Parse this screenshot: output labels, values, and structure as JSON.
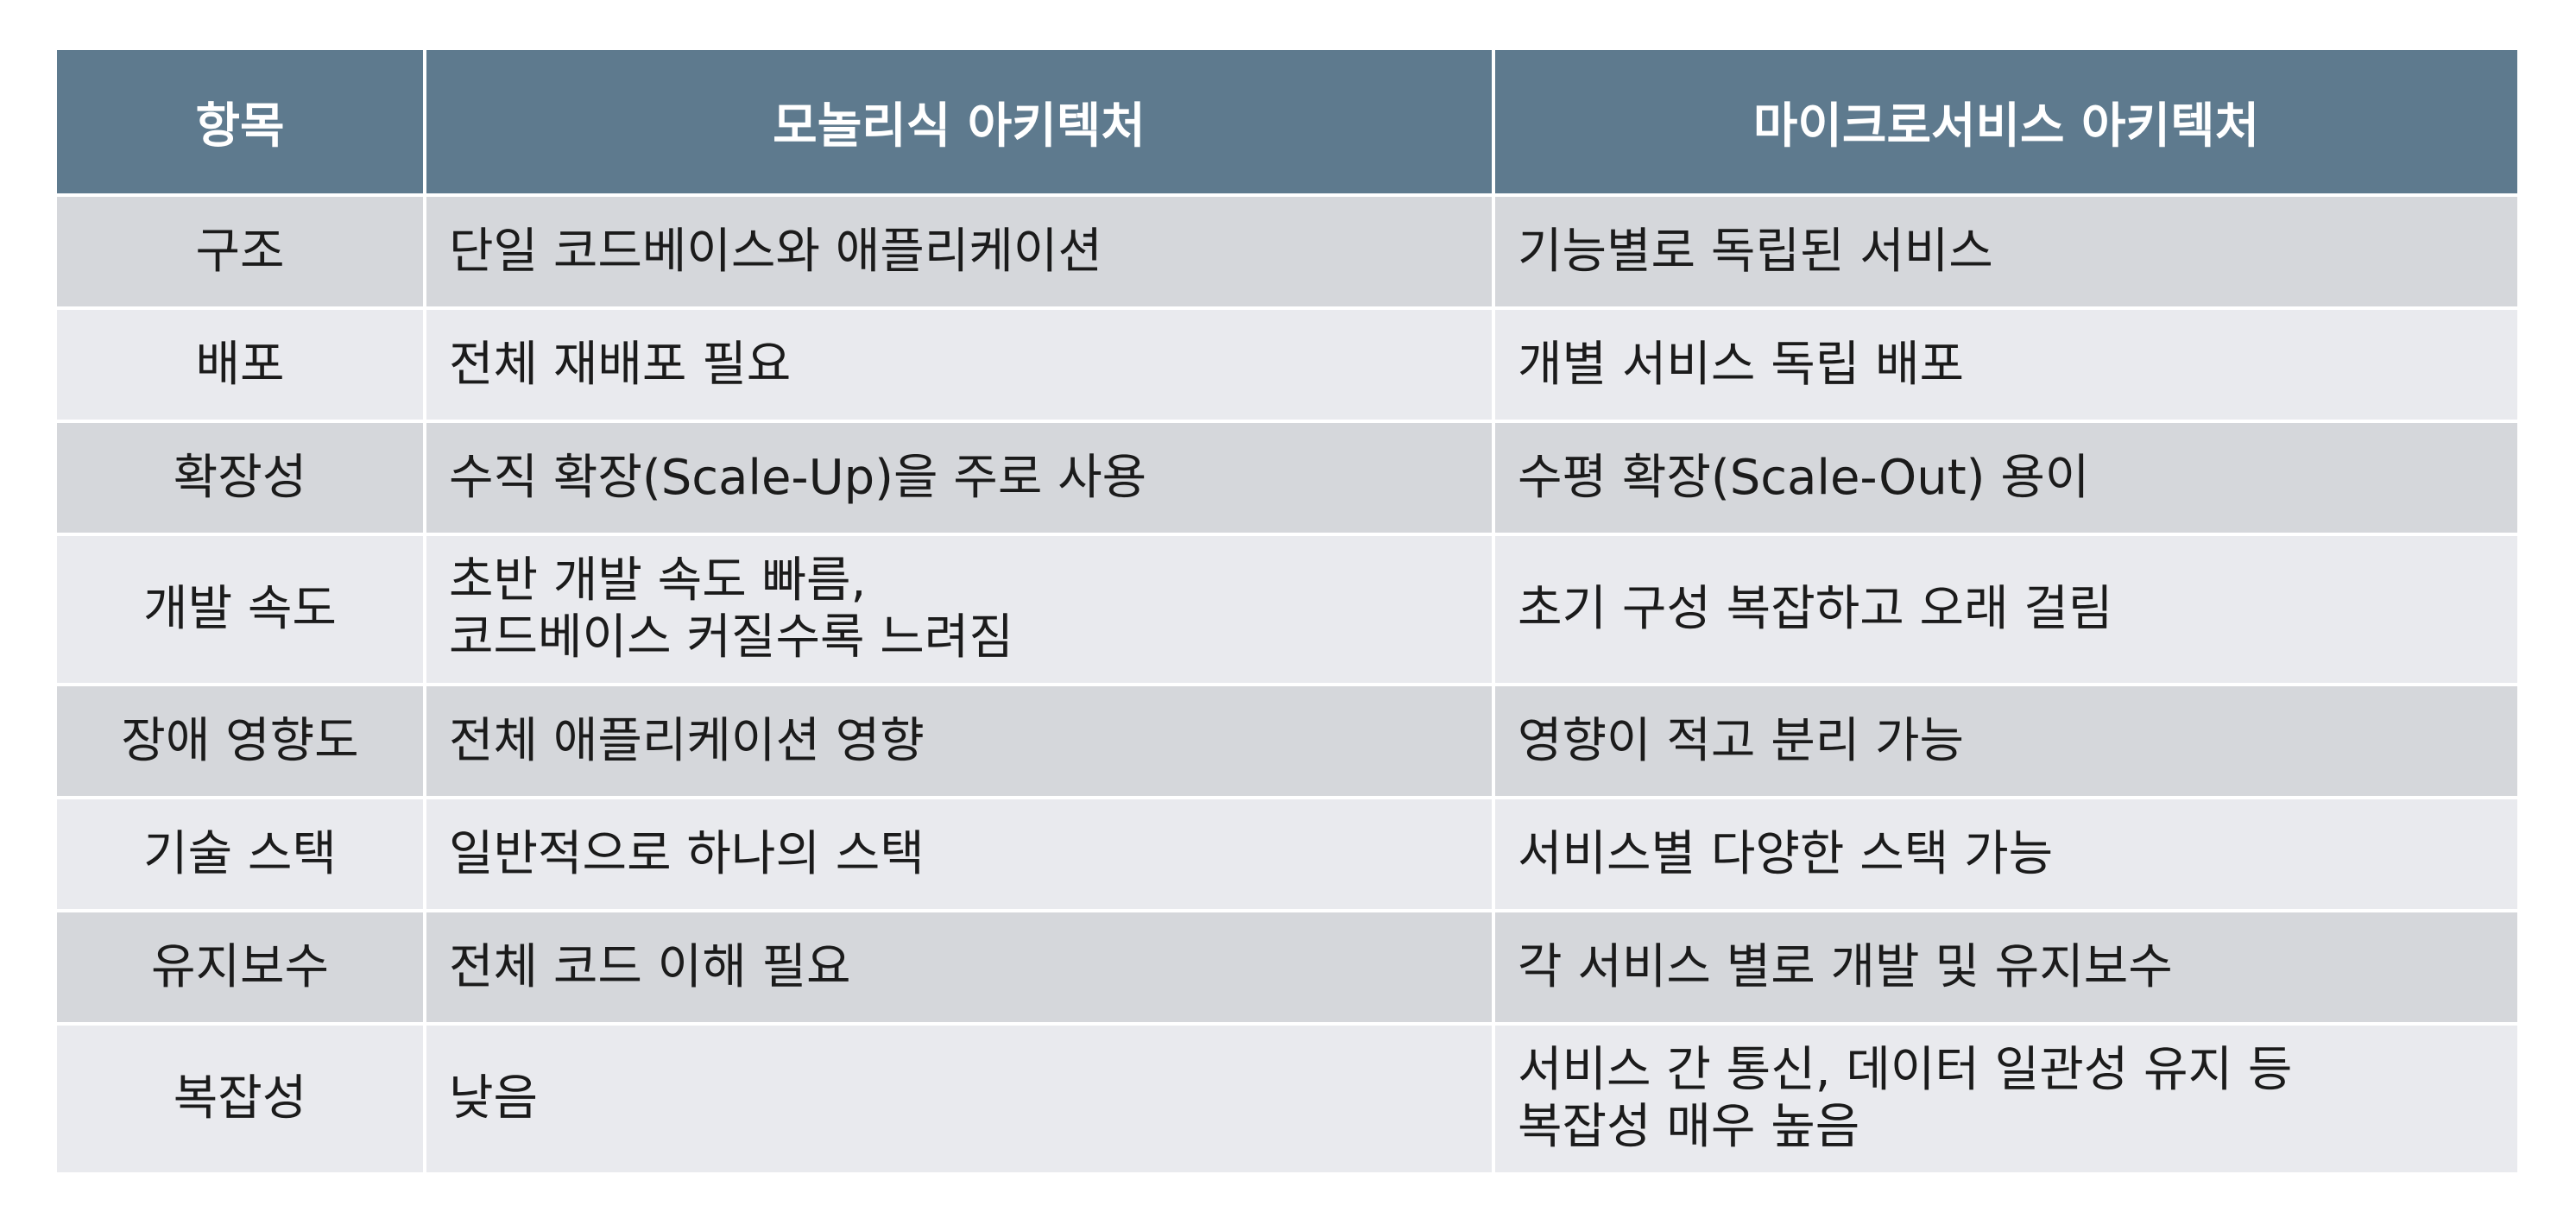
{
  "table": {
    "headers": [
      "항목",
      "모놀리식 아키텍처",
      "마이크로서비스 아키텍처"
    ],
    "rows": [
      {
        "item": "구조",
        "mono": [
          "단일 코드베이스와 애플리케이션"
        ],
        "micro": [
          "기능별로 독립된 서비스"
        ]
      },
      {
        "item": "배포",
        "mono": [
          "전체 재배포 필요"
        ],
        "micro": [
          "개별 서비스 독립 배포"
        ]
      },
      {
        "item": "확장성",
        "mono": [
          "수직 확장(Scale-Up)을 주로 사용"
        ],
        "micro": [
          "수평 확장(Scale-Out) 용이"
        ]
      },
      {
        "item": "개발 속도",
        "mono": [
          "초반 개발 속도 빠름,",
          "코드베이스 커질수록 느려짐"
        ],
        "micro": [
          "초기 구성 복잡하고 오래 걸림"
        ]
      },
      {
        "item": "장애 영향도",
        "mono": [
          "전체 애플리케이션 영향"
        ],
        "micro": [
          "영향이 적고 분리 가능"
        ]
      },
      {
        "item": "기술 스택",
        "mono": [
          "일반적으로 하나의 스택"
        ],
        "micro": [
          "서비스별 다양한 스택 가능"
        ]
      },
      {
        "item": "유지보수",
        "mono": [
          "전체 코드 이해 필요"
        ],
        "micro": [
          "각 서비스 별로 개발 및 유지보수"
        ]
      },
      {
        "item": "복잡성",
        "mono": [
          "낮음"
        ],
        "micro": [
          "서비스 간 통신, 데이터 일관성 유지 등",
          "복잡성 매우 높음"
        ]
      }
    ]
  }
}
